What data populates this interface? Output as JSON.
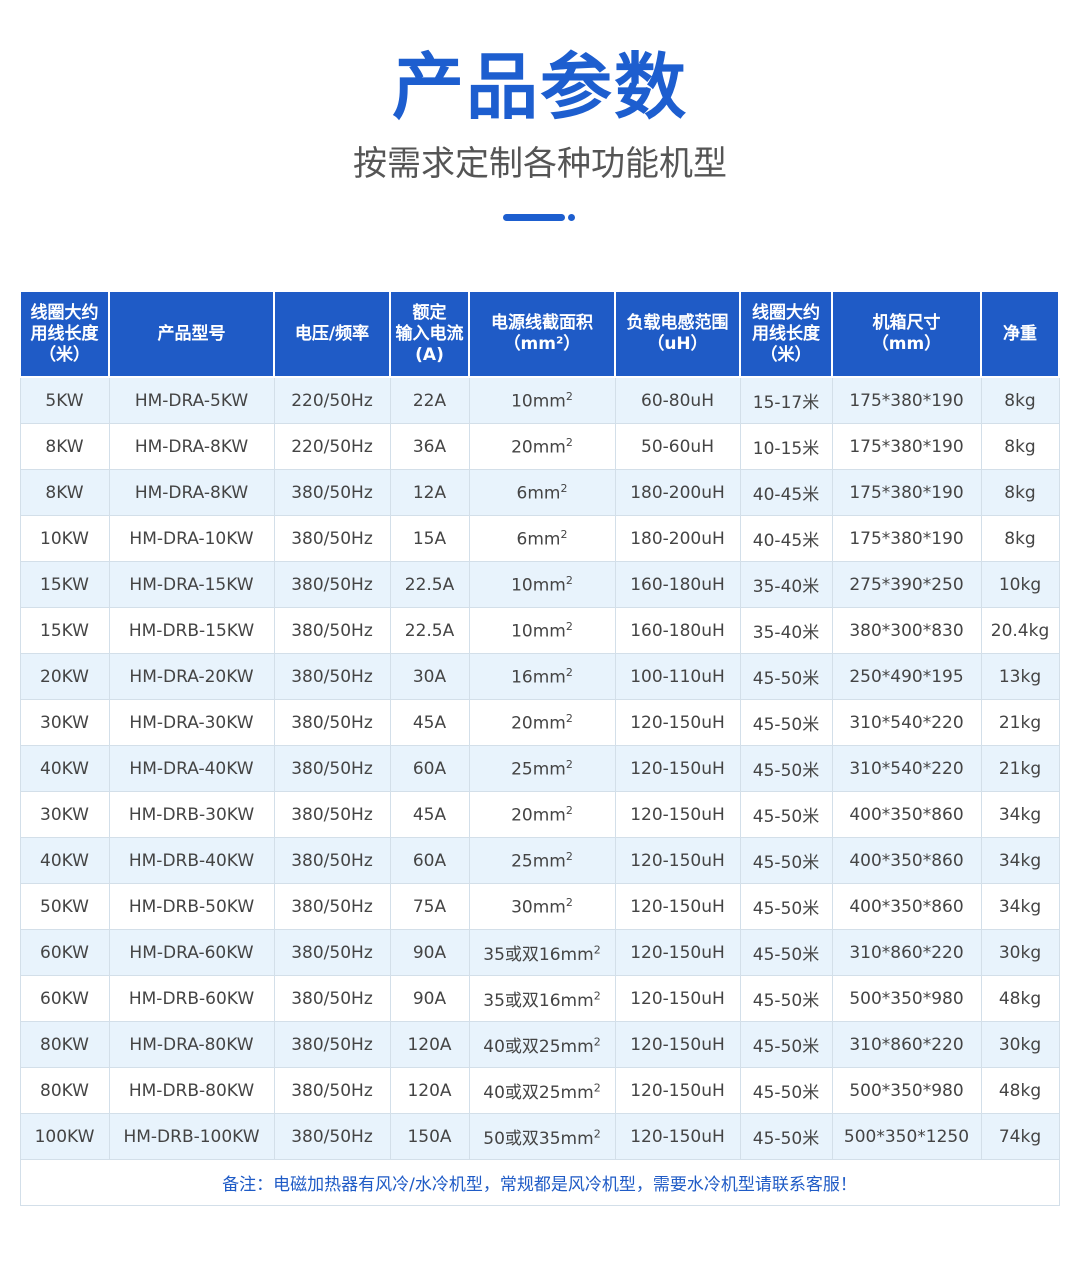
{
  "title": "产品参数",
  "subtitle": "按需求定制各种功能机型",
  "table": {
    "headers": [
      "线圈大约\n用线长度\n（米）",
      "产品型号",
      "电压/频率",
      "额定\n输入电流\n(A)",
      "电源线截面积\n（mm²）",
      "负载电感范围\n（uH）",
      "线圈大约\n用线长度\n（米）",
      "机箱尺寸\n（mm）",
      "净重"
    ],
    "rows": [
      [
        "5KW",
        "HM-DRA-5KW",
        "220/50Hz",
        "22A",
        "10mm",
        "60-80uH",
        "15-17米",
        "175*380*190",
        "8kg"
      ],
      [
        "8KW",
        "HM-DRA-8KW",
        "220/50Hz",
        "36A",
        "20mm",
        "50-60uH",
        "10-15米",
        "175*380*190",
        "8kg"
      ],
      [
        "8KW",
        "HM-DRA-8KW",
        "380/50Hz",
        "12A",
        "6mm",
        "180-200uH",
        "40-45米",
        "175*380*190",
        "8kg"
      ],
      [
        "10KW",
        "HM-DRA-10KW",
        "380/50Hz",
        "15A",
        "6mm",
        "180-200uH",
        "40-45米",
        "175*380*190",
        "8kg"
      ],
      [
        "15KW",
        "HM-DRA-15KW",
        "380/50Hz",
        "22.5A",
        "10mm",
        "160-180uH",
        "35-40米",
        "275*390*250",
        "10kg"
      ],
      [
        "15KW",
        "HM-DRB-15KW",
        "380/50Hz",
        "22.5A",
        "10mm",
        "160-180uH",
        "35-40米",
        "380*300*830",
        "20.4kg"
      ],
      [
        "20KW",
        "HM-DRA-20KW",
        "380/50Hz",
        "30A",
        "16mm",
        "100-110uH",
        "45-50米",
        "250*490*195",
        "13kg"
      ],
      [
        "30KW",
        "HM-DRA-30KW",
        "380/50Hz",
        "45A",
        "20mm",
        "120-150uH",
        "45-50米",
        "310*540*220",
        "21kg"
      ],
      [
        "40KW",
        "HM-DRA-40KW",
        "380/50Hz",
        "60A",
        "25mm",
        "120-150uH",
        "45-50米",
        "310*540*220",
        "21kg"
      ],
      [
        "30KW",
        "HM-DRB-30KW",
        "380/50Hz",
        "45A",
        "20mm",
        "120-150uH",
        "45-50米",
        "400*350*860",
        "34kg"
      ],
      [
        "40KW",
        "HM-DRB-40KW",
        "380/50Hz",
        "60A",
        "25mm",
        "120-150uH",
        "45-50米",
        "400*350*860",
        "34kg"
      ],
      [
        "50KW",
        "HM-DRB-50KW",
        "380/50Hz",
        "75A",
        "30mm",
        "120-150uH",
        "45-50米",
        "400*350*860",
        "34kg"
      ],
      [
        "60KW",
        "HM-DRA-60KW",
        "380/50Hz",
        "90A",
        "35或双16mm",
        "120-150uH",
        "45-50米",
        "310*860*220",
        "30kg"
      ],
      [
        "60KW",
        "HM-DRB-60KW",
        "380/50Hz",
        "90A",
        "35或双16mm",
        "120-150uH",
        "45-50米",
        "500*350*980",
        "48kg"
      ],
      [
        "80KW",
        "HM-DRA-80KW",
        "380/50Hz",
        "120A",
        "40或双25mm",
        "120-150uH",
        "45-50米",
        "310*860*220",
        "30kg"
      ],
      [
        "80KW",
        "HM-DRB-80KW",
        "380/50Hz",
        "120A",
        "40或双25mm",
        "120-150uH",
        "45-50米",
        "500*350*980",
        "48kg"
      ],
      [
        "100KW",
        "HM-DRB-100KW",
        "380/50Hz",
        "150A",
        "50或双35mm",
        "120-150uH",
        "45-50米",
        "500*350*1250",
        "74kg"
      ]
    ],
    "superscript": "2",
    "note": "备注：电磁加热器有风冷/水冷机型，常规都是风冷机型，需要水冷机型请联系客服！"
  },
  "colors": {
    "accent": "#1d5ecf",
    "header_bg": "#1f5bc6",
    "row_alt": "#e8f3fc"
  }
}
